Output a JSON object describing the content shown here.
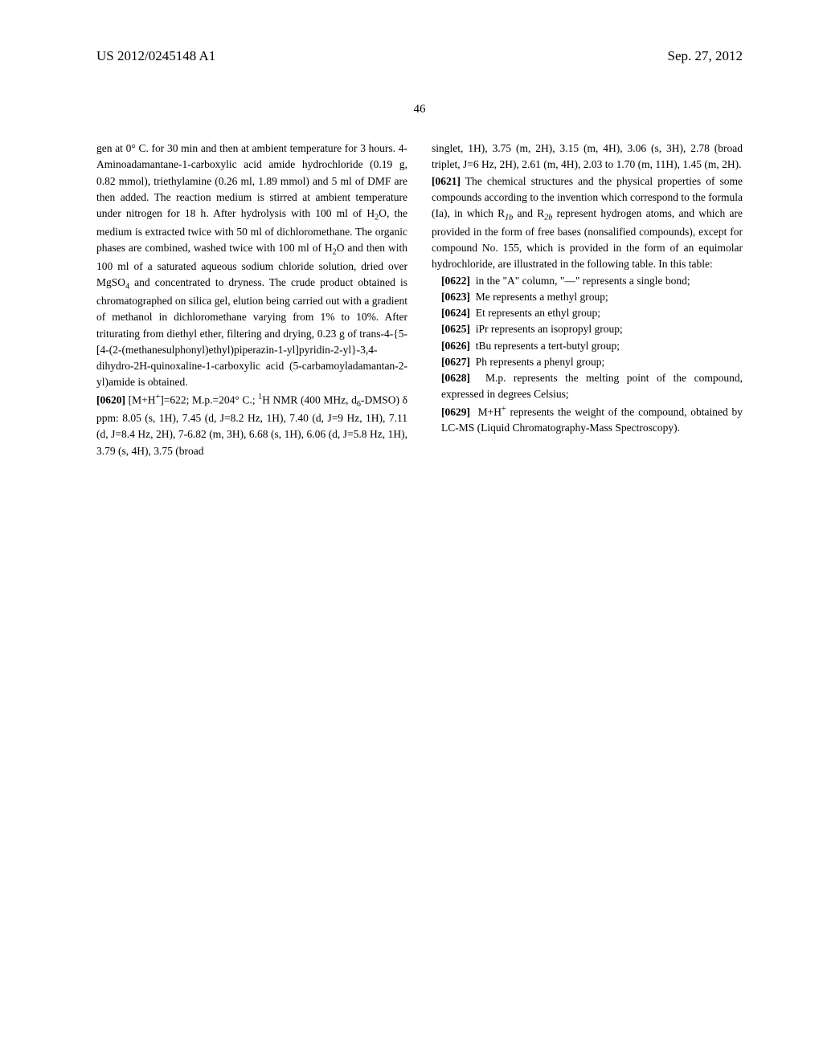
{
  "header": {
    "left": "US 2012/0245148 A1",
    "right": "Sep. 27, 2012"
  },
  "pageNumber": "46",
  "leftColumn": {
    "para1": "gen at 0° C. for 30 min and then at ambient temperature for 3 hours. 4-Aminoadamantane-1-carboxylic acid amide hydrochloride (0.19 g, 0.82 mmol), triethylamine (0.26 ml, 1.89 mmol) and 5 ml of DMF are then added. The reaction medium is stirred at ambient temperature under nitrogen for 18 h. After hydrolysis with 100 ml of H",
    "para1b": "O, the medium is extracted twice with 50 ml of dichloromethane. The organic phases are combined, washed twice with 100 ml of H",
    "para1c": "O and then with 100 ml of a saturated aqueous sodium chloride solution, dried over MgSO",
    "para1d": " and concentrated to dryness. The crude product obtained is chromatographed on silica gel, elution being carried out with a gradient of methanol in dichloromethane varying from 1% to 10%. After triturating from diethyl ether, filtering and drying, 0.23 g of trans-4-{5-[4-(2-(methanesulphonyl)ethyl)piperazin-1-yl]pyridin-2-yl}-3,4-dihydro-2H-quinoxaline-1-carboxylic acid (5-carbamoyladamantan-2-yl)amide is obtained.",
    "para2num": "[0620]",
    "para2": " [M+H",
    "para2b": "]=622; M.p.=204° C.; ",
    "para2c": "H NMR (400 MHz, d",
    "para2d": "-DMSO) δ ppm: 8.05 (s, 1H), 7.45 (d, J=8.2 Hz, 1H), 7.40 (d, J=9 Hz, 1H), 7.11 (d, J=8.4 Hz, 2H), 7-6.82 (m, 3H), 6.68 (s, 1H), 6.06 (d, J=5.8 Hz, 1H), 3.79 (s, 4H), 3.75 (broad"
  },
  "rightColumn": {
    "para1": "singlet, 1H), 3.75 (m, 2H), 3.15 (m, 4H), 3.06 (s, 3H), 2.78 (broad triplet, J=6 Hz, 2H), 2.61 (m, 4H), 2.03 to 1.70 (m, 11H), 1.45 (m, 2H).",
    "para2num": "[0621]",
    "para2a": " The chemical structures and the physical properties of some compounds according to the invention which correspond to the formula (Ia), in which R",
    "para2b": " and R",
    "para2c": " represent hydrogen atoms, and which are provided in the form of free bases (nonsalified compounds), except for compound No. 155, which is provided in the form of an equimolar hydrochloride, are illustrated in the following table. In this table:",
    "items": [
      {
        "num": "[0622]",
        "text": "in the \"A\" column, \"—\" represents a single bond;"
      },
      {
        "num": "[0623]",
        "text": "Me represents a methyl group;"
      },
      {
        "num": "[0624]",
        "text": "Et represents an ethyl group;"
      },
      {
        "num": "[0625]",
        "text": "iPr represents an isopropyl group;"
      },
      {
        "num": "[0626]",
        "text": "tBu represents a tert-butyl group;"
      },
      {
        "num": "[0627]",
        "text": "Ph represents a phenyl group;"
      },
      {
        "num": "[0628]",
        "text": "M.p. represents the melting point of the compound, expressed in degrees Celsius;"
      }
    ],
    "item9num": "[0629]",
    "item9a": "M+H",
    "item9b": " represents the weight of the compound, obtained by LC-MS (Liquid Chromatography-Mass Spectroscopy)."
  }
}
